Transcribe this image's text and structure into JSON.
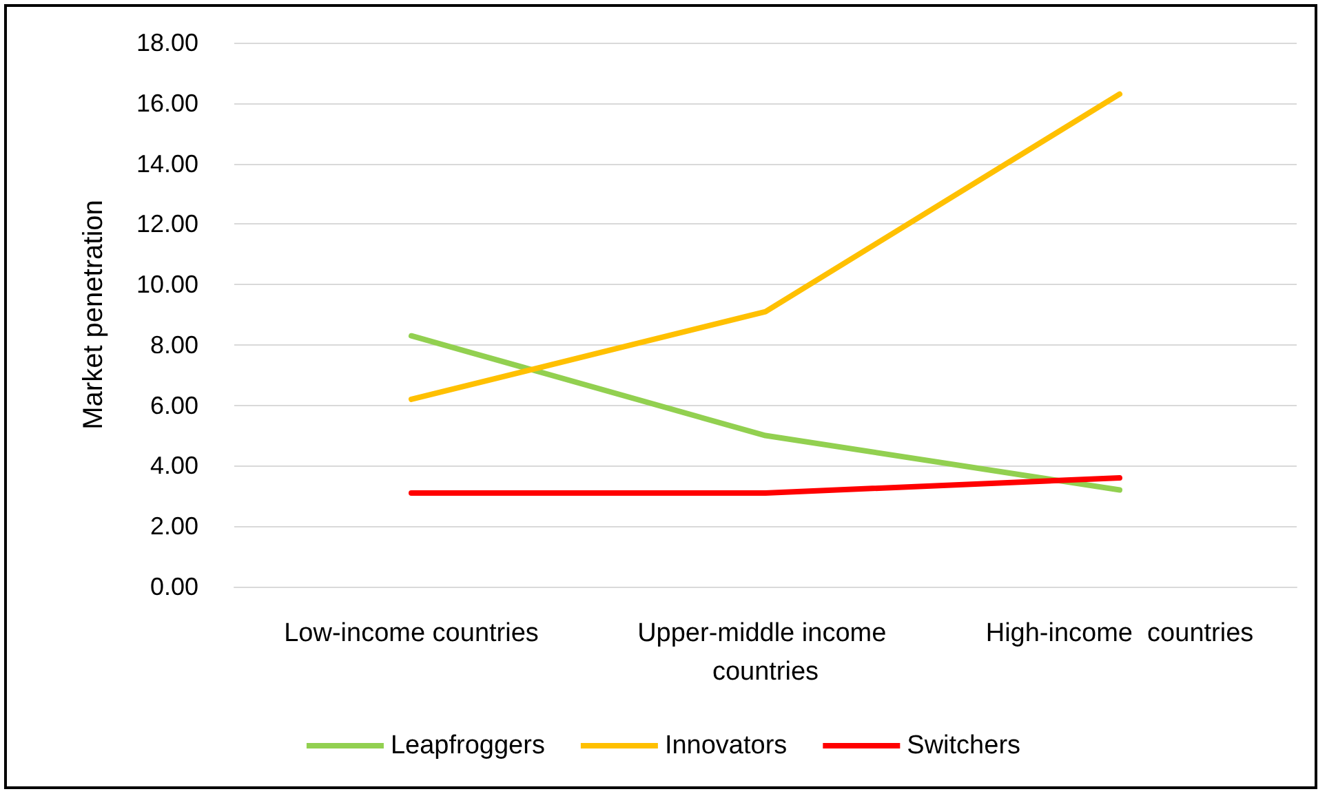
{
  "chart_data": {
    "type": "line",
    "ylabel": "Market penetration",
    "categories": [
      "Low-income countries",
      "Upper-middle income countries",
      "High-income  countries"
    ],
    "series": [
      {
        "name": "Leapfroggers",
        "color": "#92d050",
        "values": [
          8.3,
          5.0,
          3.2
        ]
      },
      {
        "name": "Innovators",
        "color": "#ffc000",
        "values": [
          6.2,
          9.1,
          16.3
        ]
      },
      {
        "name": "Switchers",
        "color": "#ff0000",
        "values": [
          3.1,
          3.1,
          3.6
        ]
      }
    ],
    "ylim": [
      0,
      18
    ],
    "yticks": [
      {
        "value": 0,
        "label": "0.00"
      },
      {
        "value": 2,
        "label": "2.00"
      },
      {
        "value": 4,
        "label": "4.00"
      },
      {
        "value": 6,
        "label": "6.00"
      },
      {
        "value": 8,
        "label": "8.00"
      },
      {
        "value": 10,
        "label": "10.00"
      },
      {
        "value": 12,
        "label": "12.00"
      },
      {
        "value": 14,
        "label": "14.00"
      },
      {
        "value": 16,
        "label": "16.00"
      },
      {
        "value": 18,
        "label": "18.00"
      }
    ],
    "grid": "y",
    "legend": "bottom",
    "marker": "none",
    "line_style": "solid"
  }
}
